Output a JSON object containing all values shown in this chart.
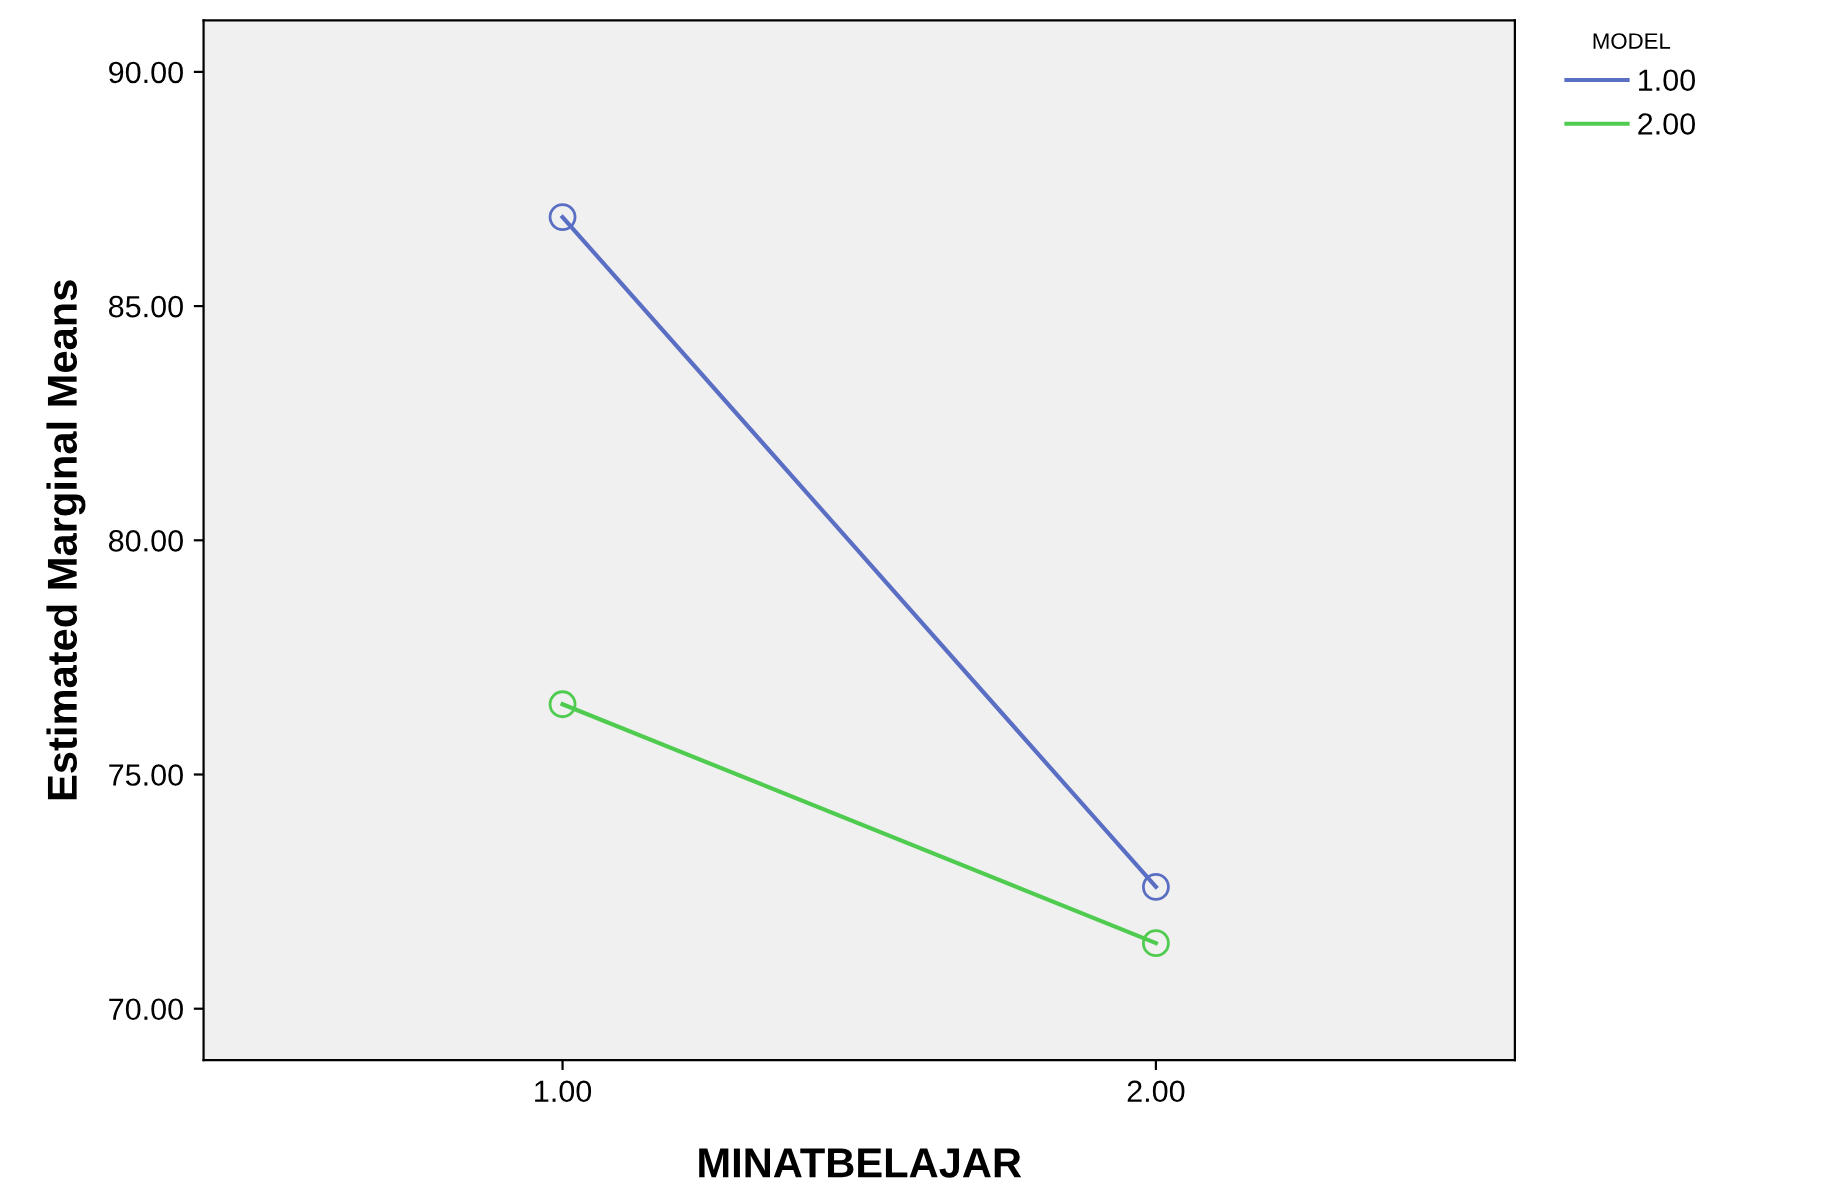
{
  "chart_data": {
    "type": "line",
    "xlabel": "MINATBELAJAR",
    "ylabel": "Estimated Marginal Means",
    "legend_title": "MODEL",
    "categories": [
      "1.00",
      "2.00"
    ],
    "series": [
      {
        "name": "1.00",
        "color": "#5a6fc4",
        "values": [
          86.9,
          72.6
        ]
      },
      {
        "name": "2.00",
        "color": "#4fcc4f",
        "values": [
          76.5,
          71.4
        ]
      }
    ],
    "ylim": [
      68.9,
      91.1
    ],
    "yticks": [
      {
        "value": 70,
        "label": "70.00"
      },
      {
        "value": 75,
        "label": "75.00"
      },
      {
        "value": 80,
        "label": "80.00"
      },
      {
        "value": 85,
        "label": "85.00"
      },
      {
        "value": 90,
        "label": "90.00"
      }
    ],
    "marker": "circle",
    "line_style": "solid",
    "legend": "top right",
    "grid": false
  }
}
